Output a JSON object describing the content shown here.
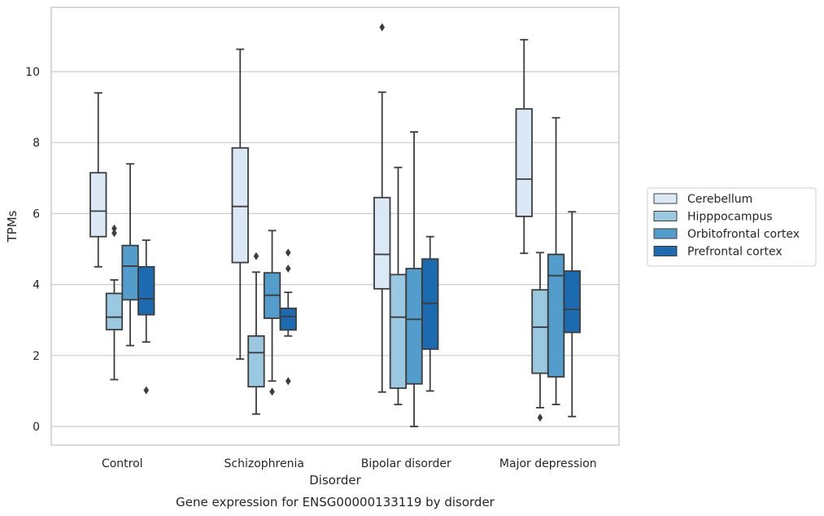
{
  "chart_data": {
    "type": "box",
    "title": "Gene expression for ENSG00000133119 by disorder",
    "xlabel": "Disorder",
    "ylabel": "TPMs",
    "ylim": [
      -0.55,
      11.8
    ],
    "yticks": [
      0,
      2,
      4,
      6,
      8,
      10
    ],
    "grid": "horizontal",
    "legend_position": "right",
    "categories": [
      "Control",
      "Schizophrenia",
      "Bipolar disorder",
      "Major depression"
    ],
    "series": [
      {
        "name": "Cerebellum",
        "color": "#dbe9f6",
        "boxes": [
          {
            "whislo": 4.5,
            "q1": 5.35,
            "med": 6.07,
            "q3": 7.15,
            "whishi": 9.4,
            "fliers": []
          },
          {
            "whislo": 1.9,
            "q1": 4.62,
            "med": 6.2,
            "q3": 7.85,
            "whishi": 10.63,
            "fliers": []
          },
          {
            "whislo": 0.97,
            "q1": 3.88,
            "med": 4.85,
            "q3": 6.45,
            "whishi": 9.42,
            "fliers": [
              11.25
            ]
          },
          {
            "whislo": 4.88,
            "q1": 5.92,
            "med": 6.97,
            "q3": 8.95,
            "whishi": 10.9,
            "fliers": []
          }
        ]
      },
      {
        "name": "Hipppocampus",
        "color": "#9ac8e0",
        "boxes": [
          {
            "whislo": 1.32,
            "q1": 2.73,
            "med": 3.08,
            "q3": 3.75,
            "whishi": 4.13,
            "fliers": [
              5.45,
              5.58
            ]
          },
          {
            "whislo": 0.35,
            "q1": 1.12,
            "med": 2.08,
            "q3": 2.55,
            "whishi": 4.35,
            "fliers": [
              4.8
            ]
          },
          {
            "whislo": 0.62,
            "q1": 1.08,
            "med": 3.08,
            "q3": 4.28,
            "whishi": 7.3,
            "fliers": []
          },
          {
            "whislo": 0.53,
            "q1": 1.5,
            "med": 2.8,
            "q3": 3.85,
            "whishi": 4.9,
            "fliers": [
              0.25
            ]
          }
        ]
      },
      {
        "name": "Orbitofrontal cortex",
        "color": "#529dcc",
        "boxes": [
          {
            "whislo": 2.28,
            "q1": 3.57,
            "med": 4.52,
            "q3": 5.1,
            "whishi": 7.4,
            "fliers": []
          },
          {
            "whislo": 1.28,
            "q1": 3.05,
            "med": 3.7,
            "q3": 4.33,
            "whishi": 5.52,
            "fliers": [
              0.98
            ]
          },
          {
            "whislo": 0.0,
            "q1": 1.2,
            "med": 3.02,
            "q3": 4.45,
            "whishi": 8.3,
            "fliers": []
          },
          {
            "whislo": 0.62,
            "q1": 1.4,
            "med": 4.25,
            "q3": 4.85,
            "whishi": 8.7,
            "fliers": []
          }
        ]
      },
      {
        "name": "Prefrontal cortex",
        "color": "#1c6aaf",
        "boxes": [
          {
            "whislo": 2.38,
            "q1": 3.15,
            "med": 3.6,
            "q3": 4.5,
            "whishi": 5.25,
            "fliers": [
              1.02
            ]
          },
          {
            "whislo": 2.55,
            "q1": 2.72,
            "med": 3.1,
            "q3": 3.33,
            "whishi": 3.78,
            "fliers": [
              4.45,
              4.9,
              1.28
            ]
          },
          {
            "whislo": 1.0,
            "q1": 2.18,
            "med": 3.47,
            "q3": 4.72,
            "whishi": 5.35,
            "fliers": []
          },
          {
            "whislo": 0.28,
            "q1": 2.65,
            "med": 3.3,
            "q3": 4.38,
            "whishi": 6.05,
            "fliers": []
          }
        ]
      }
    ]
  }
}
